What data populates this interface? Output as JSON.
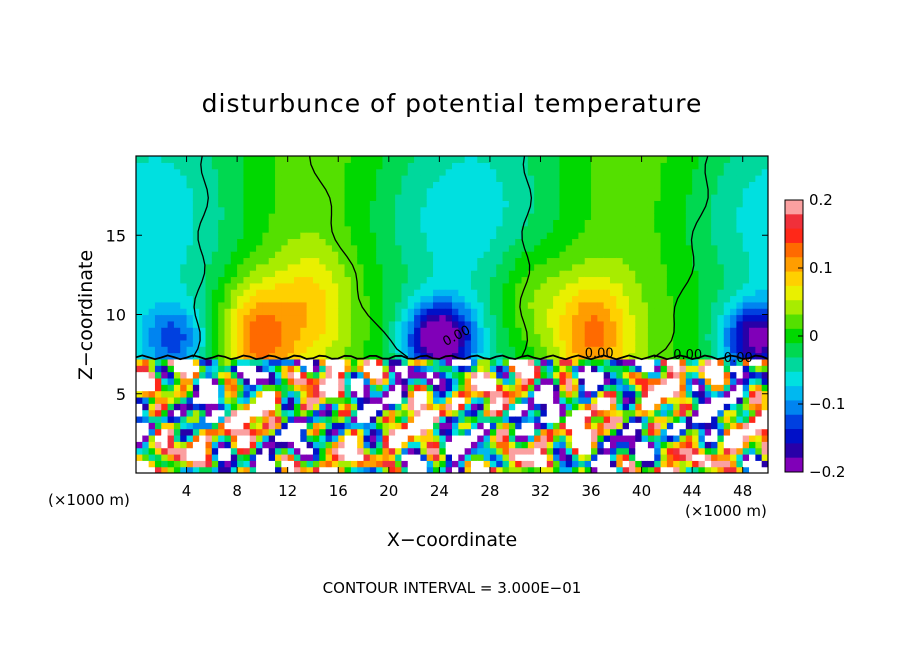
{
  "chart_data": {
    "type": "heatmap",
    "title": "disturbunce of potential temperature",
    "xlabel": "X−coordinate",
    "ylabel": "Z−coordinate",
    "x_unit_left": "(×1000 m)",
    "x_unit_right": "(×1000 m)",
    "footer": "CONTOUR INTERVAL = 3.000E−01",
    "xlim": [
      0,
      50
    ],
    "ylim": [
      0,
      20
    ],
    "x_ticks": [
      4,
      8,
      12,
      16,
      20,
      24,
      28,
      32,
      36,
      40,
      44,
      48
    ],
    "x_tick_labels": [
      "4",
      "8",
      "12",
      "16",
      "20",
      "24",
      "28",
      "32",
      "36",
      "40",
      "44",
      "48"
    ],
    "y_ticks": [
      5,
      10,
      15
    ],
    "y_tick_labels": [
      "5",
      "10",
      "15"
    ],
    "colorbar": {
      "range": [
        -0.2,
        0.2
      ],
      "ticks": [
        0.2,
        0.1,
        0,
        -0.1,
        -0.2
      ],
      "tick_labels": [
        "0.2",
        "0.1",
        "0",
        "−0.1",
        "−0.2"
      ],
      "colors": [
        "#fba0a0",
        "#f0303a",
        "#ff2818",
        "#ff6a00",
        "#ff9d00",
        "#ffd000",
        "#e9f000",
        "#a8ec00",
        "#54e000",
        "#00d800",
        "#00d850",
        "#00d89c",
        "#00e0e0",
        "#00b8f0",
        "#0084f0",
        "#0040e0",
        "#0010c8",
        "#2800a8",
        "#8000b8"
      ]
    },
    "contour_labels": [
      "0.00",
      "0.00",
      "0.00",
      "0.00"
    ],
    "features": {
      "upper_field_baseline": -0.01,
      "warm_plumes": [
        {
          "x": 9.5,
          "z": 8.5,
          "value": 0.12
        },
        {
          "x": 14,
          "z": 10.5,
          "value": 0.06
        },
        {
          "x": 36,
          "z": 8.8,
          "value": 0.11
        },
        {
          "x": 31,
          "z": 11,
          "value": 0.05
        }
      ],
      "cold_domes": [
        {
          "x": 3,
          "z": 8.5,
          "value": -0.09
        },
        {
          "x": 24,
          "z": 8.5,
          "value": -0.2
        },
        {
          "x": 49,
          "z": 8.5,
          "value": -0.16
        }
      ],
      "zero_contours_x_at_top": [
        5.5,
        14,
        31,
        45.5
      ],
      "zero_contours_x_at_base": [
        4.5,
        21.5,
        41
      ]
    }
  }
}
